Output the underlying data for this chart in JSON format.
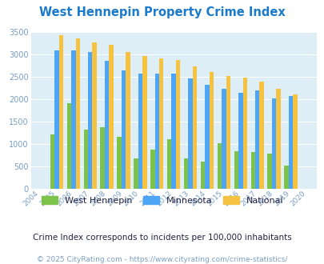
{
  "title": "West Hennepin Property Crime Index",
  "years": [
    2004,
    2005,
    2006,
    2007,
    2008,
    2009,
    2010,
    2011,
    2012,
    2013,
    2014,
    2015,
    2016,
    2017,
    2018,
    2019,
    2020
  ],
  "west_hennepin": [
    0,
    1220,
    1900,
    1320,
    1380,
    1150,
    680,
    870,
    1110,
    670,
    610,
    1010,
    840,
    820,
    790,
    510,
    0
  ],
  "minnesota": [
    0,
    3080,
    3080,
    3040,
    2860,
    2630,
    2570,
    2560,
    2570,
    2460,
    2320,
    2230,
    2140,
    2190,
    2010,
    2060,
    0
  ],
  "national": [
    0,
    3420,
    3350,
    3270,
    3210,
    3040,
    2960,
    2910,
    2870,
    2730,
    2610,
    2510,
    2480,
    2390,
    2220,
    2100,
    0
  ],
  "colors": {
    "west_hennepin": "#7dc24b",
    "minnesota": "#4da6f5",
    "national": "#f5c242"
  },
  "ylim": [
    0,
    3500
  ],
  "yticks": [
    0,
    500,
    1000,
    1500,
    2000,
    2500,
    3000,
    3500
  ],
  "subtitle": "Crime Index corresponds to incidents per 100,000 inhabitants",
  "footer": "© 2025 CityRating.com - https://www.cityrating.com/crime-statistics/",
  "background_color": "#ddeef6",
  "title_color": "#1a7acc",
  "subtitle_color": "#222244",
  "footer_color": "#7a9fc4",
  "tick_color": "#7a9fc4",
  "legend_label_color": "#222244"
}
